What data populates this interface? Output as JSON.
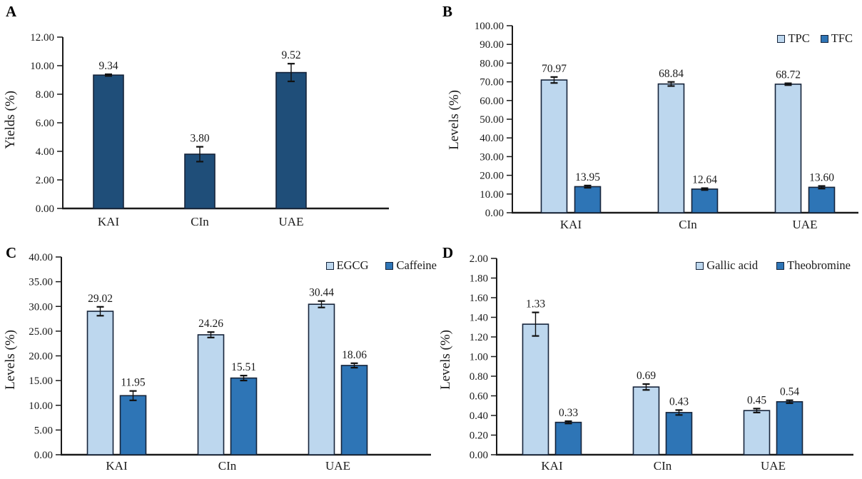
{
  "figure": {
    "background": "#ffffff",
    "axis_color": "#1a1a1a",
    "text_color": "#1a1a1a",
    "bar_border_color": "#16243a",
    "error_bar_color": "#111111",
    "palette": {
      "light_blue": "#BDD7EE",
      "medium_blue": "#2E75B6",
      "dark_blue": "#1F4E79"
    }
  },
  "chart_data": [
    {
      "type": "bar",
      "panel_label": "A",
      "ylabel": "Yields (%)",
      "xlabel": "",
      "ylim": [
        0,
        12
      ],
      "ytick_step": 2,
      "tick_decimals": 2,
      "grid": false,
      "value_labels": true,
      "legend": false,
      "categories": [
        "KAI",
        "CIn",
        "UAE"
      ],
      "series": [
        {
          "name": "",
          "color": "#1F4E79",
          "values": [
            9.34,
            3.8,
            9.52
          ],
          "errors": [
            0.06,
            0.52,
            0.62
          ]
        }
      ]
    },
    {
      "type": "bar",
      "panel_label": "B",
      "ylabel": "Levels (%)",
      "xlabel": "",
      "ylim": [
        0,
        100
      ],
      "ytick_step": 10,
      "tick_decimals": 2,
      "grid": false,
      "value_labels": true,
      "legend": true,
      "legend_position": "top-right",
      "categories": [
        "KAI",
        "CIn",
        "UAE"
      ],
      "series": [
        {
          "name": "TPC",
          "color": "#BDD7EE",
          "values": [
            70.97,
            68.84,
            68.72
          ],
          "errors": [
            1.6,
            1.1,
            0.5
          ]
        },
        {
          "name": "TFC",
          "color": "#2E75B6",
          "values": [
            13.95,
            12.64,
            13.6
          ],
          "errors": [
            0.6,
            0.5,
            0.7
          ]
        }
      ]
    },
    {
      "type": "bar",
      "panel_label": "C",
      "ylabel": "Levels (%)",
      "xlabel": "",
      "ylim": [
        0,
        40
      ],
      "ytick_step": 5,
      "tick_decimals": 2,
      "grid": false,
      "value_labels": true,
      "legend": true,
      "legend_position": "top-right",
      "categories": [
        "KAI",
        "CIn",
        "UAE"
      ],
      "series": [
        {
          "name": "EGCG",
          "color": "#BDD7EE",
          "values": [
            29.02,
            24.26,
            30.44
          ],
          "errors": [
            0.9,
            0.55,
            0.65
          ]
        },
        {
          "name": "Caffeine",
          "color": "#2E75B6",
          "values": [
            11.95,
            15.51,
            18.06
          ],
          "errors": [
            0.95,
            0.5,
            0.45
          ]
        }
      ]
    },
    {
      "type": "bar",
      "panel_label": "D",
      "ylabel": "Levels (%)",
      "xlabel": "",
      "ylim": [
        0,
        2
      ],
      "ytick_step": 0.2,
      "tick_decimals": 2,
      "grid": false,
      "value_labels": true,
      "legend": true,
      "legend_position": "top-right",
      "categories": [
        "KAI",
        "CIn",
        "UAE"
      ],
      "series": [
        {
          "name": "Gallic acid",
          "color": "#BDD7EE",
          "values": [
            1.33,
            0.69,
            0.45
          ],
          "errors": [
            0.12,
            0.03,
            0.02
          ]
        },
        {
          "name": "Theobromine",
          "color": "#2E75B6",
          "values": [
            0.33,
            0.43,
            0.54
          ],
          "errors": [
            0.012,
            0.025,
            0.015
          ]
        }
      ]
    }
  ]
}
